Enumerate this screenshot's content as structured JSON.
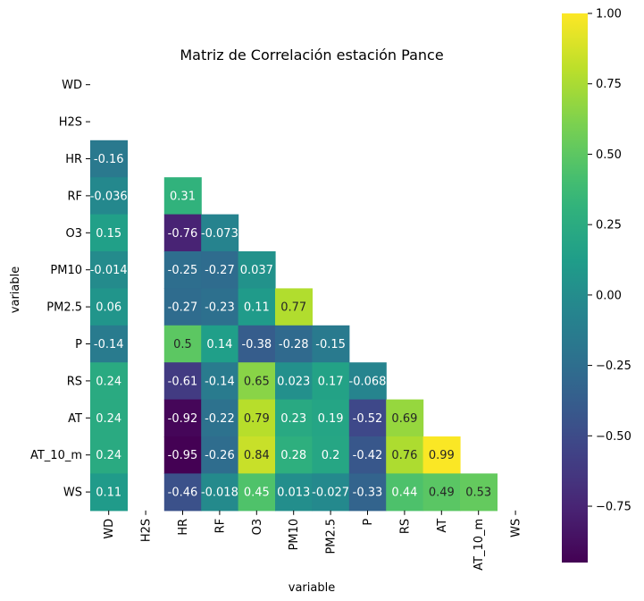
{
  "chart_data": {
    "type": "heatmap",
    "title": "Matriz de Correlación estación Pance",
    "xlabel": "variable",
    "ylabel": "variable",
    "mask": "upper-triangle-including-diagonal",
    "colormap": "viridis",
    "colormap_stops": [
      "#440154",
      "#482878",
      "#3e4989",
      "#31688e",
      "#26828e",
      "#1f9e89",
      "#35b779",
      "#6ece58",
      "#b5de2b",
      "#fde725"
    ],
    "vmin": -0.95,
    "vmax": 1.0,
    "x_categories": [
      "WD",
      "H2S",
      "HR",
      "RF",
      "O3",
      "PM10",
      "PM2.5",
      "P",
      "RS",
      "AT",
      "AT_10_m",
      "WS"
    ],
    "y_categories": [
      "WD",
      "H2S",
      "HR",
      "RF",
      "O3",
      "PM10",
      "PM2.5",
      "P",
      "RS",
      "AT",
      "AT_10_m",
      "WS"
    ],
    "cells": [
      {
        "row": "HR",
        "col": "WD",
        "value": -0.16,
        "label": "-0.16"
      },
      {
        "row": "RF",
        "col": "WD",
        "value": -0.036,
        "label": "-0.036"
      },
      {
        "row": "RF",
        "col": "HR",
        "value": 0.31,
        "label": "0.31"
      },
      {
        "row": "O3",
        "col": "WD",
        "value": 0.15,
        "label": "0.15"
      },
      {
        "row": "O3",
        "col": "HR",
        "value": -0.76,
        "label": "-0.76"
      },
      {
        "row": "O3",
        "col": "RF",
        "value": -0.073,
        "label": "-0.073"
      },
      {
        "row": "PM10",
        "col": "WD",
        "value": -0.014,
        "label": "-0.014"
      },
      {
        "row": "PM10",
        "col": "HR",
        "value": -0.25,
        "label": "-0.25"
      },
      {
        "row": "PM10",
        "col": "RF",
        "value": -0.27,
        "label": "-0.27"
      },
      {
        "row": "PM10",
        "col": "O3",
        "value": 0.037,
        "label": "0.037"
      },
      {
        "row": "PM2.5",
        "col": "WD",
        "value": 0.06,
        "label": "0.06"
      },
      {
        "row": "PM2.5",
        "col": "HR",
        "value": -0.27,
        "label": "-0.27"
      },
      {
        "row": "PM2.5",
        "col": "RF",
        "value": -0.23,
        "label": "-0.23"
      },
      {
        "row": "PM2.5",
        "col": "O3",
        "value": 0.11,
        "label": "0.11"
      },
      {
        "row": "PM2.5",
        "col": "PM10",
        "value": 0.77,
        "label": "0.77"
      },
      {
        "row": "P",
        "col": "WD",
        "value": -0.14,
        "label": "-0.14"
      },
      {
        "row": "P",
        "col": "HR",
        "value": 0.5,
        "label": "0.5"
      },
      {
        "row": "P",
        "col": "RF",
        "value": 0.14,
        "label": "0.14"
      },
      {
        "row": "P",
        "col": "O3",
        "value": -0.38,
        "label": "-0.38"
      },
      {
        "row": "P",
        "col": "PM10",
        "value": -0.28,
        "label": "-0.28"
      },
      {
        "row": "P",
        "col": "PM2.5",
        "value": -0.15,
        "label": "-0.15"
      },
      {
        "row": "RS",
        "col": "WD",
        "value": 0.24,
        "label": "0.24"
      },
      {
        "row": "RS",
        "col": "HR",
        "value": -0.61,
        "label": "-0.61"
      },
      {
        "row": "RS",
        "col": "RF",
        "value": -0.14,
        "label": "-0.14"
      },
      {
        "row": "RS",
        "col": "O3",
        "value": 0.65,
        "label": "0.65"
      },
      {
        "row": "RS",
        "col": "PM10",
        "value": 0.023,
        "label": "0.023"
      },
      {
        "row": "RS",
        "col": "PM2.5",
        "value": 0.17,
        "label": "0.17"
      },
      {
        "row": "RS",
        "col": "P",
        "value": -0.068,
        "label": "-0.068"
      },
      {
        "row": "AT",
        "col": "WD",
        "value": 0.24,
        "label": "0.24"
      },
      {
        "row": "AT",
        "col": "HR",
        "value": -0.92,
        "label": "-0.92"
      },
      {
        "row": "AT",
        "col": "RF",
        "value": -0.22,
        "label": "-0.22"
      },
      {
        "row": "AT",
        "col": "O3",
        "value": 0.79,
        "label": "0.79"
      },
      {
        "row": "AT",
        "col": "PM10",
        "value": 0.23,
        "label": "0.23"
      },
      {
        "row": "AT",
        "col": "PM2.5",
        "value": 0.19,
        "label": "0.19"
      },
      {
        "row": "AT",
        "col": "P",
        "value": -0.52,
        "label": "-0.52"
      },
      {
        "row": "AT",
        "col": "RS",
        "value": 0.69,
        "label": "0.69"
      },
      {
        "row": "AT_10_m",
        "col": "WD",
        "value": 0.24,
        "label": "0.24"
      },
      {
        "row": "AT_10_m",
        "col": "HR",
        "value": -0.95,
        "label": "-0.95"
      },
      {
        "row": "AT_10_m",
        "col": "RF",
        "value": -0.26,
        "label": "-0.26"
      },
      {
        "row": "AT_10_m",
        "col": "O3",
        "value": 0.84,
        "label": "0.84"
      },
      {
        "row": "AT_10_m",
        "col": "PM10",
        "value": 0.28,
        "label": "0.28"
      },
      {
        "row": "AT_10_m",
        "col": "PM2.5",
        "value": 0.2,
        "label": "0.2"
      },
      {
        "row": "AT_10_m",
        "col": "P",
        "value": -0.42,
        "label": "-0.42"
      },
      {
        "row": "AT_10_m",
        "col": "RS",
        "value": 0.76,
        "label": "0.76"
      },
      {
        "row": "AT_10_m",
        "col": "AT",
        "value": 0.99,
        "label": "0.99"
      },
      {
        "row": "WS",
        "col": "WD",
        "value": 0.11,
        "label": "0.11"
      },
      {
        "row": "WS",
        "col": "HR",
        "value": -0.46,
        "label": "-0.46"
      },
      {
        "row": "WS",
        "col": "RF",
        "value": -0.018,
        "label": "-0.018"
      },
      {
        "row": "WS",
        "col": "O3",
        "value": 0.45,
        "label": "0.45"
      },
      {
        "row": "WS",
        "col": "PM10",
        "value": 0.013,
        "label": "0.013"
      },
      {
        "row": "WS",
        "col": "PM2.5",
        "value": -0.027,
        "label": "-0.027"
      },
      {
        "row": "WS",
        "col": "P",
        "value": -0.33,
        "label": "-0.33"
      },
      {
        "row": "WS",
        "col": "RS",
        "value": 0.44,
        "label": "0.44"
      },
      {
        "row": "WS",
        "col": "AT",
        "value": 0.49,
        "label": "0.49"
      },
      {
        "row": "WS",
        "col": "AT_10_m",
        "value": 0.53,
        "label": "0.53"
      }
    ],
    "colorbar": {
      "ticks": [
        1.0,
        0.75,
        0.5,
        0.25,
        0.0,
        -0.25,
        -0.5,
        -0.75
      ],
      "tick_labels": [
        "1.00",
        "0.75",
        "0.50",
        "0.25",
        "0.00",
        "−0.25",
        "−0.50",
        "−0.75"
      ]
    }
  }
}
